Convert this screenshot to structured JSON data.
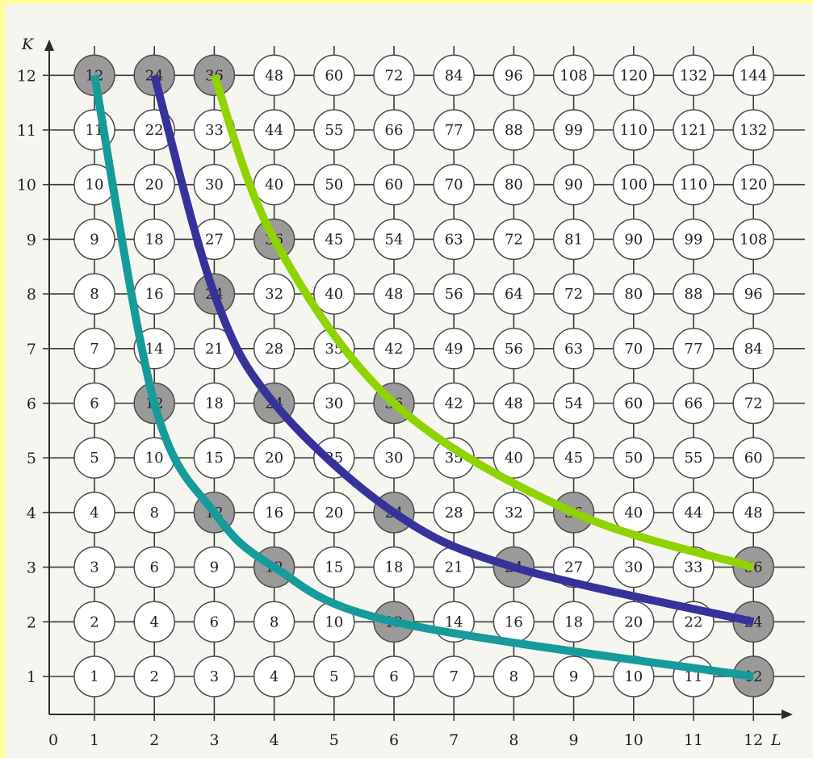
{
  "chart_data": {
    "type": "table",
    "x_axis": {
      "label": "L",
      "origin_label": "0",
      "ticks": [
        1,
        2,
        3,
        4,
        5,
        6,
        7,
        8,
        9,
        10,
        11,
        12
      ]
    },
    "y_axis": {
      "label": "K",
      "ticks": [
        1,
        2,
        3,
        4,
        5,
        6,
        7,
        8,
        9,
        10,
        11,
        12
      ]
    },
    "grid_values": "value = L × K",
    "highlighted_cells": [
      {
        "L": 1,
        "K": 12
      },
      {
        "L": 2,
        "K": 12
      },
      {
        "L": 3,
        "K": 12
      },
      {
        "L": 4,
        "K": 9
      },
      {
        "L": 3,
        "K": 8
      },
      {
        "L": 2,
        "K": 6
      },
      {
        "L": 4,
        "K": 6
      },
      {
        "L": 6,
        "K": 6
      },
      {
        "L": 3,
        "K": 4
      },
      {
        "L": 6,
        "K": 4
      },
      {
        "L": 9,
        "K": 4
      },
      {
        "L": 4,
        "K": 3
      },
      {
        "L": 8,
        "K": 3
      },
      {
        "L": 12,
        "K": 3
      },
      {
        "L": 6,
        "K": 2
      },
      {
        "L": 12,
        "K": 2
      },
      {
        "L": 12,
        "K": 1
      }
    ],
    "curves": [
      {
        "product": 12,
        "color": "#159b9b",
        "points": [
          [
            1,
            12
          ],
          [
            2,
            6
          ],
          [
            3,
            4
          ],
          [
            4,
            3
          ],
          [
            6,
            2
          ],
          [
            12,
            1
          ]
        ]
      },
      {
        "product": 24,
        "color": "#35339a",
        "points": [
          [
            2,
            12
          ],
          [
            3,
            8
          ],
          [
            4,
            6
          ],
          [
            6,
            4
          ],
          [
            8,
            3
          ],
          [
            12,
            2
          ]
        ]
      },
      {
        "product": 36,
        "color": "#8fd400",
        "points": [
          [
            3,
            12
          ],
          [
            4,
            9
          ],
          [
            6,
            6
          ],
          [
            9,
            4
          ],
          [
            12,
            3
          ]
        ]
      }
    ],
    "colors": {
      "background": "#ffff9c",
      "panel": "#f6f6f1",
      "node_fill": "#ffffff",
      "node_highlight": "#9a9a9a"
    }
  }
}
